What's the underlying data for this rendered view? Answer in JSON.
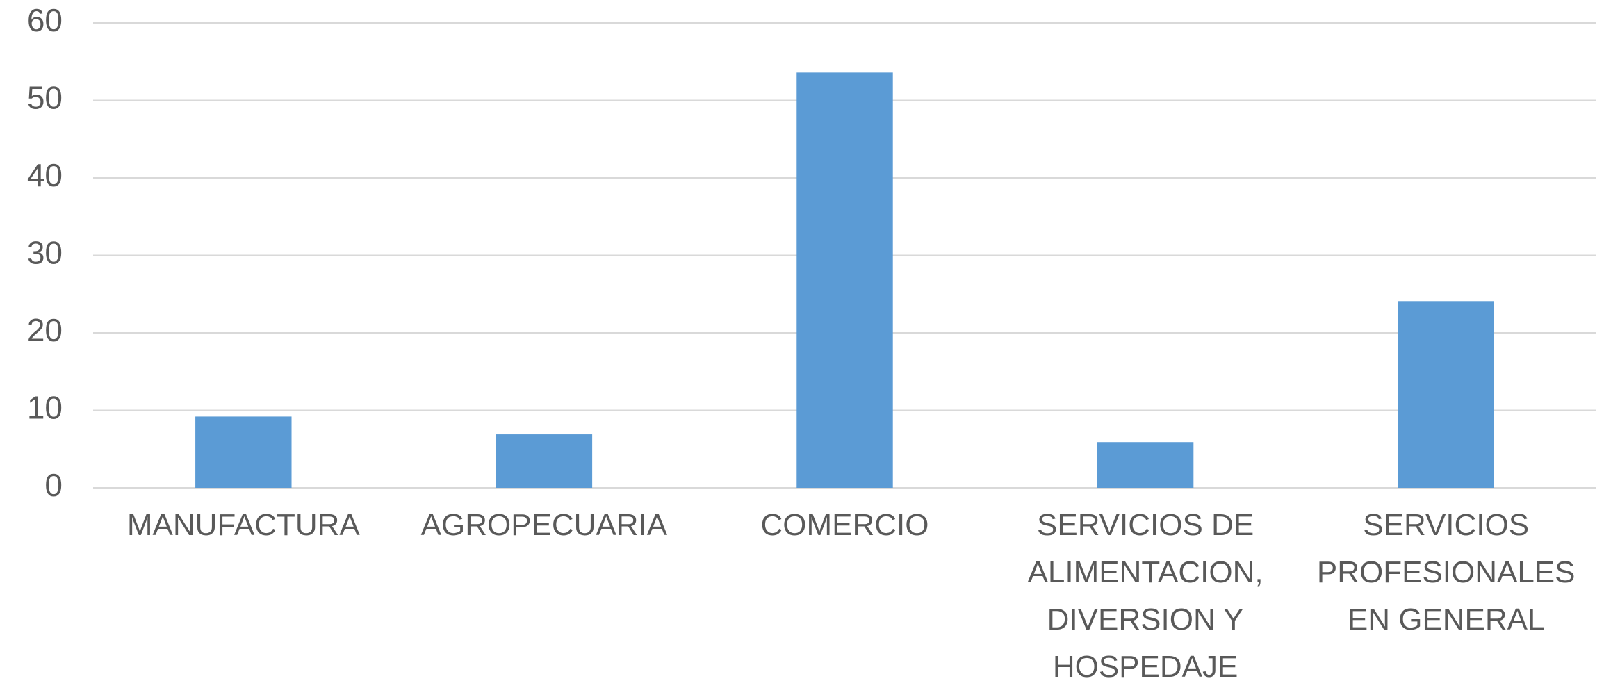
{
  "chart_data": {
    "type": "bar",
    "categories": [
      "MANUFACTURA",
      "AGROPECUARIA",
      "COMERCIO",
      "SERVICIOS DE ALIMENTACION, DIVERSION Y HOSPEDAJE",
      "SERVICIOS PROFESIONALES EN GENERAL"
    ],
    "values": [
      9.2,
      6.9,
      53.6,
      5.9,
      24.1
    ],
    "color": "#5b9bd5",
    "ylim": [
      0,
      60
    ],
    "yticks": [
      0,
      10,
      20,
      30,
      40,
      50,
      60
    ],
    "grid": true
  }
}
